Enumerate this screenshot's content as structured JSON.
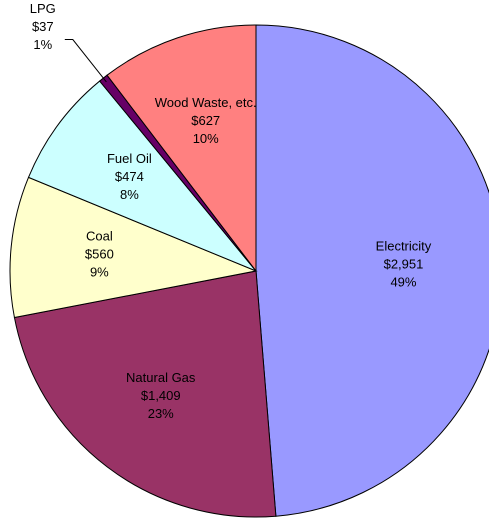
{
  "chart_data": {
    "type": "pie",
    "categories": [
      "Electricity",
      "Natural Gas",
      "Coal",
      "Fuel Oil",
      "LPG",
      "Wood Waste, etc."
    ],
    "values": [
      2951,
      1409,
      560,
      474,
      37,
      627
    ],
    "value_labels": [
      "$2,951",
      "$1,409",
      "$560",
      "$474",
      "$37",
      "$627"
    ],
    "percent_labels": [
      "49%",
      "23%",
      "9%",
      "8%",
      "1%",
      "10%"
    ],
    "colors": [
      "#9999ff",
      "#993366",
      "#ffffcc",
      "#ccffff",
      "#660066",
      "#ff8080"
    ]
  }
}
